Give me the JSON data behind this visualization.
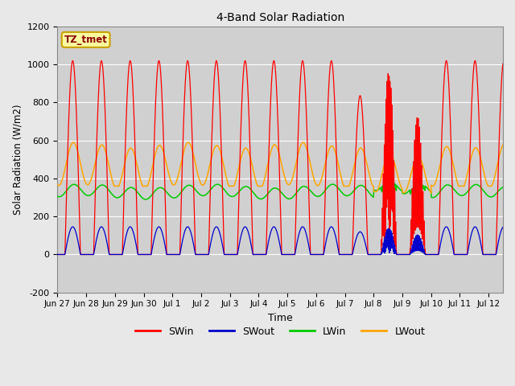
{
  "title": "4-Band Solar Radiation",
  "ylabel": "Solar Radiation (W/m2)",
  "xlabel": "Time",
  "ylim": [
    -200,
    1200
  ],
  "background_color": "#e8e8e8",
  "plot_bg_color": "#d0d0d0",
  "grid_color": "#ffffff",
  "annotation_label": "TZ_tmet",
  "annotation_bg": "#ffffa0",
  "annotation_border": "#c8a000",
  "annotation_text_color": "#8b0000",
  "colors": {
    "SWin": "#ff0000",
    "SWout": "#0000cc",
    "LWin": "#00cc00",
    "LWout": "#ffa500"
  },
  "tick_labels": [
    "Jun 27",
    "Jun 28",
    "Jun 29",
    "Jun 30",
    "Jul 1",
    "Jul 2",
    "Jul 3",
    "Jul 4",
    "Jul 5",
    "Jul 6",
    "Jul 7",
    "Jul 8",
    "Jul 9",
    "Jul 10",
    "Jul 11",
    "Jul 12"
  ],
  "yticks": [
    -200,
    0,
    200,
    400,
    600,
    800,
    1000,
    1200
  ],
  "total_days": 15.5,
  "SWin_peak": 1020,
  "SWout_ratio": 0.143,
  "LWin_base": 330,
  "LWin_amp": 30,
  "LWout_base": 465,
  "LWout_amp": 110,
  "sunrise": 0.26,
  "sunset": 0.8,
  "figsize": [
    6.4,
    4.8
  ],
  "dpi": 100
}
